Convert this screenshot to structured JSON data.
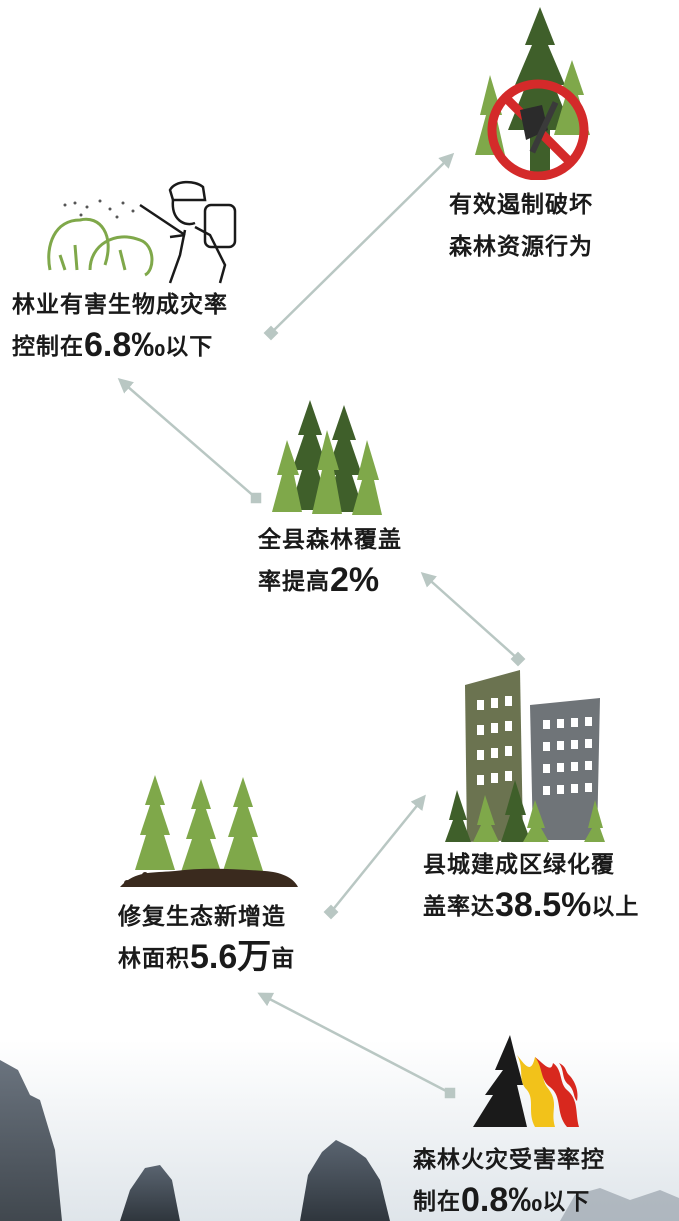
{
  "items": [
    {
      "id": "stop-destruction",
      "icon": "no-axe-in-forest-icon",
      "line1": "有效遏制破坏",
      "line2_prefix": "森林资源行为",
      "line2_value": "",
      "line2_suffix": ""
    },
    {
      "id": "pest-control",
      "icon": "worker-spraying-pesticide-icon",
      "line1": "林业有害生物成灾率",
      "line2_prefix": "控制在",
      "line2_value": "6.8‰",
      "line2_suffix": "以下"
    },
    {
      "id": "forest-coverage",
      "icon": "pine-forest-icon",
      "line1": "全县森林覆盖",
      "line2_prefix": "率提高",
      "line2_value": "2%",
      "line2_suffix": ""
    },
    {
      "id": "urban-greening",
      "icon": "city-buildings-icon",
      "line1": "县城建成区绿化覆",
      "line2_prefix": "盖率达",
      "line2_value": "38.5%",
      "line2_suffix": "以上"
    },
    {
      "id": "new-afforestation",
      "icon": "planted-saplings-icon",
      "line1": "修复生态新增造",
      "line2_prefix": "林面积",
      "line2_value": "5.6万",
      "line2_suffix": "亩"
    },
    {
      "id": "fire-damage",
      "icon": "forest-fire-flame-icon",
      "line1": "森林火灾受害率控",
      "line2_prefix": "制在",
      "line2_value": "0.8‰",
      "line2_suffix": "以下"
    }
  ],
  "colors": {
    "text": "#1a1a1a",
    "tree_dark": "#3f5f2a",
    "tree_light": "#7fa84a",
    "connector": "#b9c7c3",
    "building_green": "#6b7350",
    "building_gray": "#6f7478",
    "prohibit_red": "#d42a2a",
    "flame_yellow": "#f2c21a",
    "flame_red": "#d8281e"
  }
}
